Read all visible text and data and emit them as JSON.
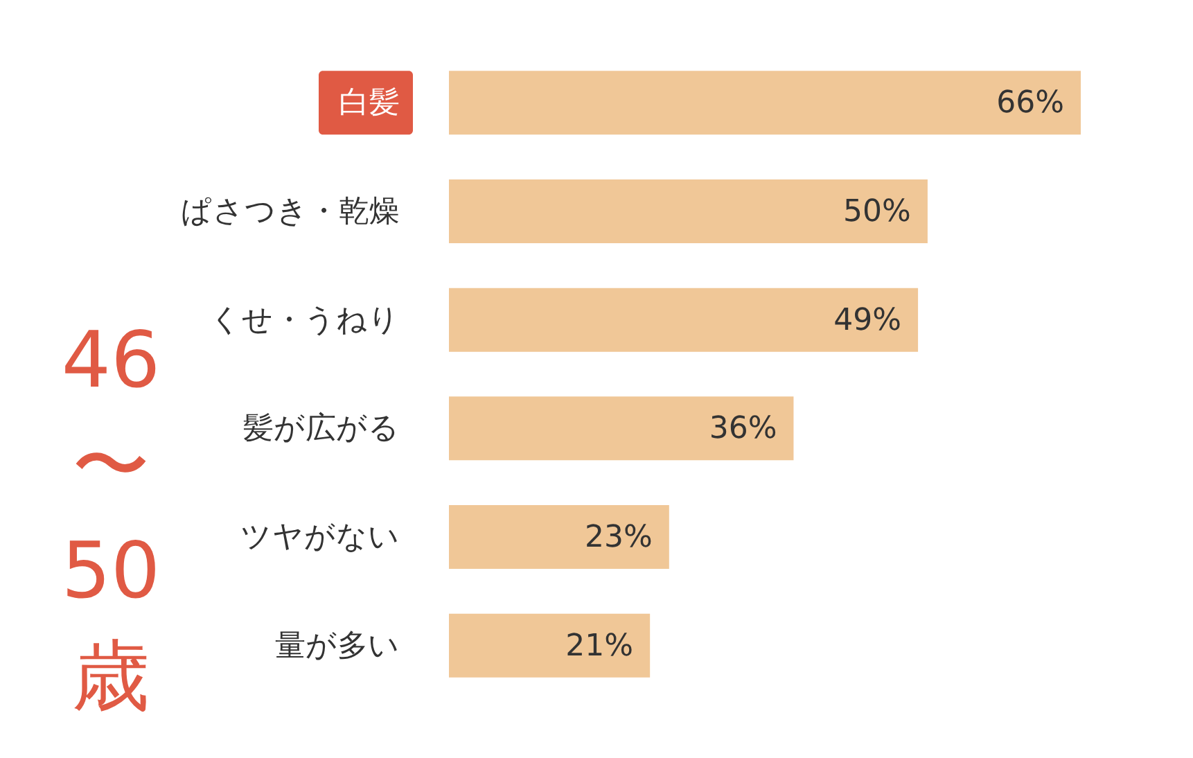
{
  "chart_data": {
    "type": "bar",
    "orientation": "horizontal",
    "title": "46〜50歳",
    "categories": [
      "白髪",
      "ぱさつき・乾燥",
      "くせ・うねり",
      "髪が広がる",
      "ツヤがない",
      "量が多い"
    ],
    "values": [
      66,
      50,
      49,
      36,
      23,
      21
    ],
    "value_labels": [
      "66%",
      "50%",
      "49%",
      "36%",
      "23%",
      "21%"
    ],
    "color": "#f0c797",
    "grid": false
  }
}
